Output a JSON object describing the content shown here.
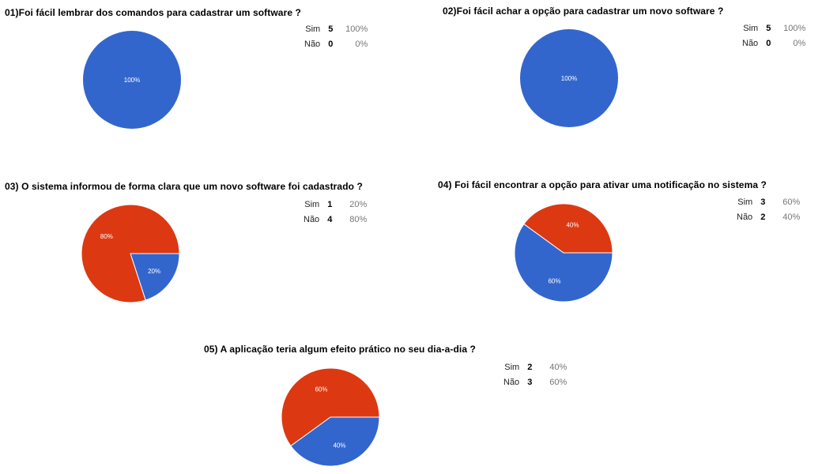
{
  "colors": {
    "sim": "#3366cc",
    "nao": "#dc3912"
  },
  "chart_data": [
    {
      "type": "pie",
      "title": "01)Foi fácil lembrar dos comandos para cadastrar um software ?",
      "categories": [
        "Sim",
        "Não"
      ],
      "values": [
        5,
        0
      ],
      "percents": [
        "100%",
        "0%"
      ],
      "slice_labels": [
        "100%",
        ""
      ],
      "legend": "right"
    },
    {
      "type": "pie",
      "title": "02)Foi fácil achar a opção para cadastrar um novo software ?",
      "categories": [
        "Sim",
        "Não"
      ],
      "values": [
        5,
        0
      ],
      "percents": [
        "100%",
        "0%"
      ],
      "slice_labels": [
        "100%",
        ""
      ],
      "legend": "right"
    },
    {
      "type": "pie",
      "title": "03) O sistema informou de forma clara que um novo software foi cadastrado ?",
      "categories": [
        "Sim",
        "Não"
      ],
      "values": [
        1,
        4
      ],
      "percents": [
        "20%",
        "80%"
      ],
      "slice_labels": [
        "20%",
        "80%"
      ],
      "legend": "right"
    },
    {
      "type": "pie",
      "title": "04) Foi fácil encontrar a opção para ativar uma notificação no sistema ?",
      "categories": [
        "Sim",
        "Não"
      ],
      "values": [
        3,
        2
      ],
      "percents": [
        "60%",
        "40%"
      ],
      "slice_labels": [
        "60%",
        "40%"
      ],
      "legend": "right"
    },
    {
      "type": "pie",
      "title": "05) A aplicação teria algum efeito prático no seu dia-a-dia ?",
      "categories": [
        "Sim",
        "Não"
      ],
      "values": [
        2,
        3
      ],
      "percents": [
        "40%",
        "60%"
      ],
      "slice_labels": [
        "40%",
        "60%"
      ],
      "legend": "right"
    }
  ]
}
